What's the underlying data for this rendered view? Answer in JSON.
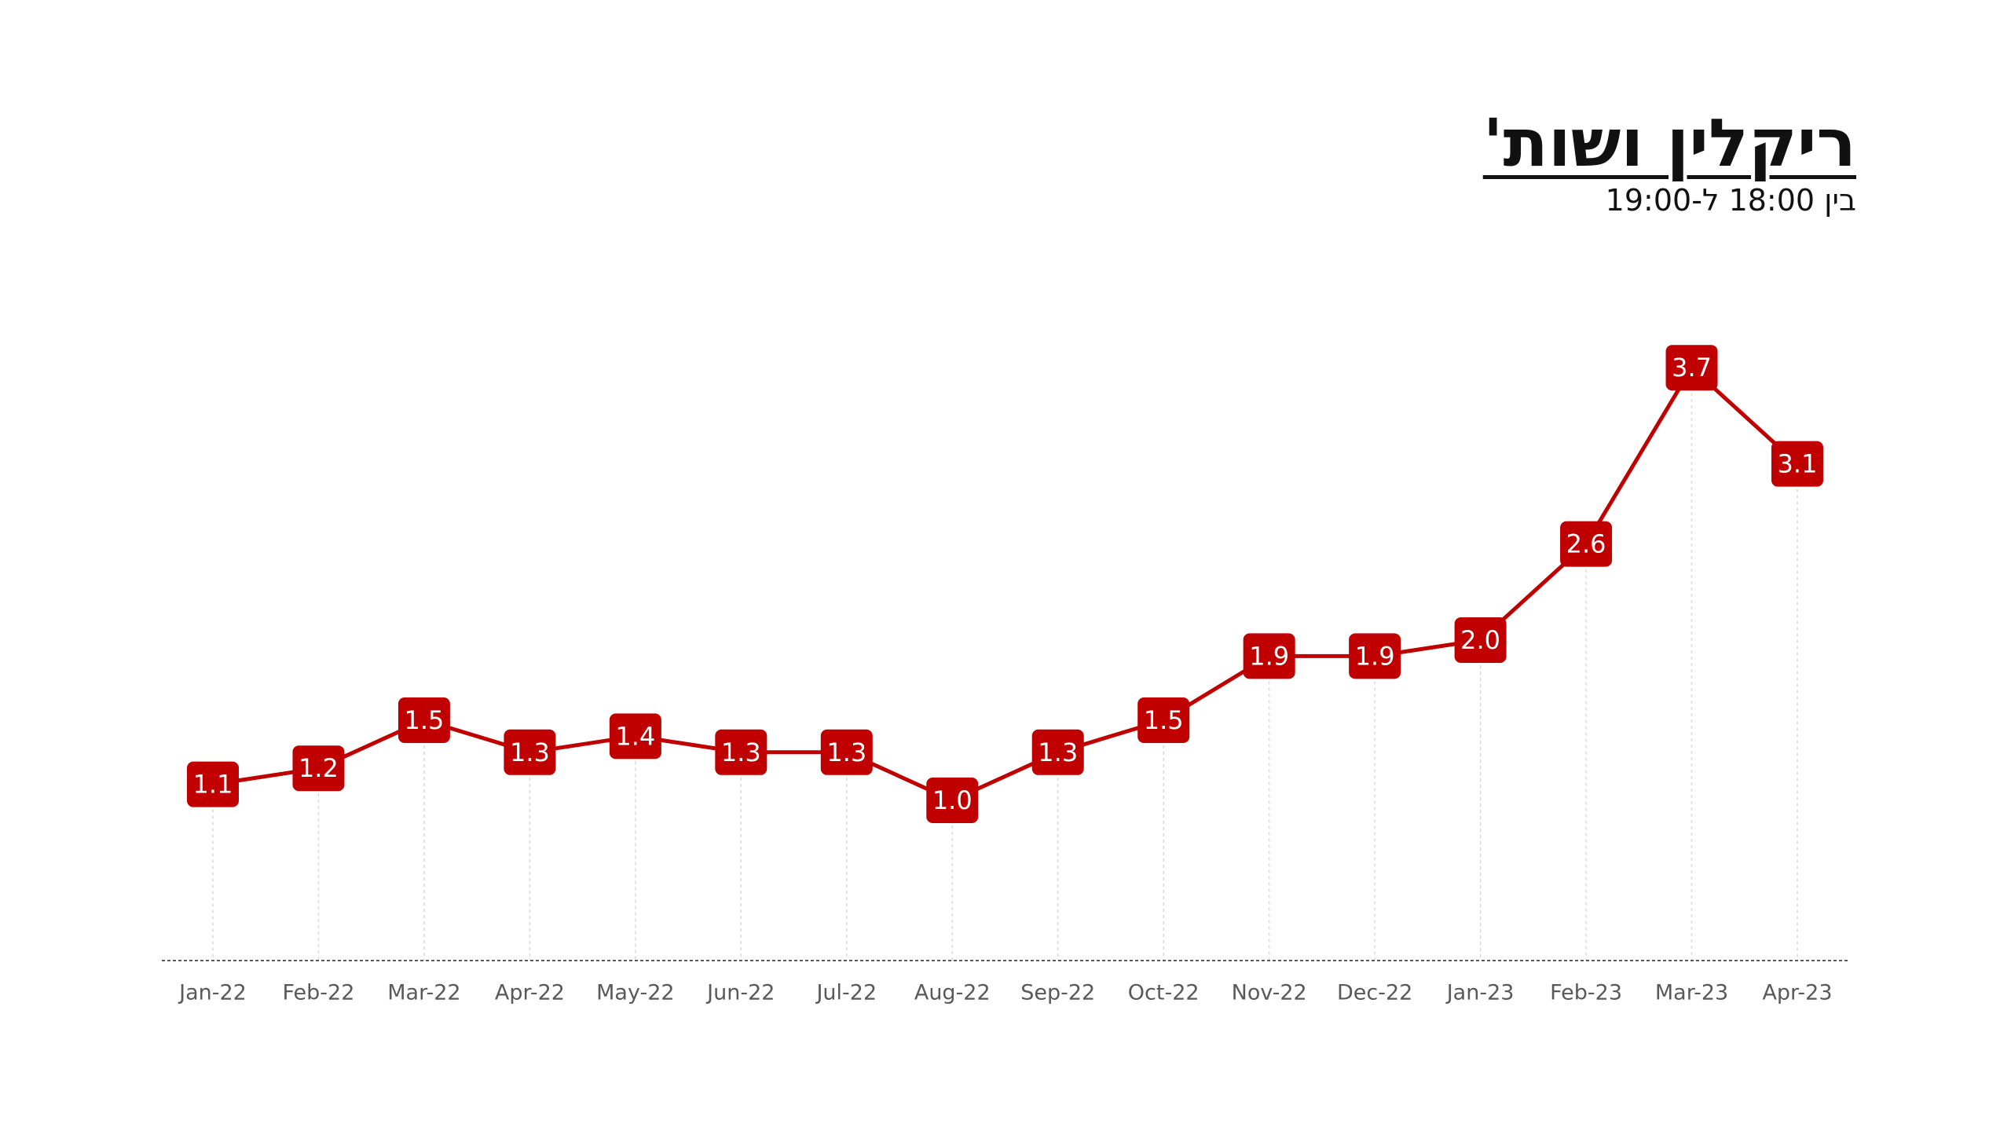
{
  "chart_data": {
    "type": "line",
    "title": "ריקלין ושות'",
    "subtitle": "בין 18:00 ל-19:00",
    "categories": [
      "Jan-22",
      "Feb-22",
      "Mar-22",
      "Apr-22",
      "May-22",
      "Jun-22",
      "Jul-22",
      "Aug-22",
      "Sep-22",
      "Oct-22",
      "Nov-22",
      "Dec-22",
      "Jan-23",
      "Feb-23",
      "Mar-23",
      "Apr-23"
    ],
    "values": [
      1.1,
      1.2,
      1.5,
      1.3,
      1.4,
      1.3,
      1.3,
      1.0,
      1.3,
      1.5,
      1.9,
      1.9,
      2.0,
      2.6,
      3.7,
      3.1
    ],
    "value_labels": [
      "1.1",
      "1.2",
      "1.5",
      "1.3",
      "1.4",
      "1.3",
      "1.3",
      "1.0",
      "1.3",
      "1.5",
      "1.9",
      "1.9",
      "2.0",
      "2.6",
      "3.7",
      "3.1"
    ],
    "color": "#c00000",
    "ylim": [
      0,
      4
    ]
  }
}
